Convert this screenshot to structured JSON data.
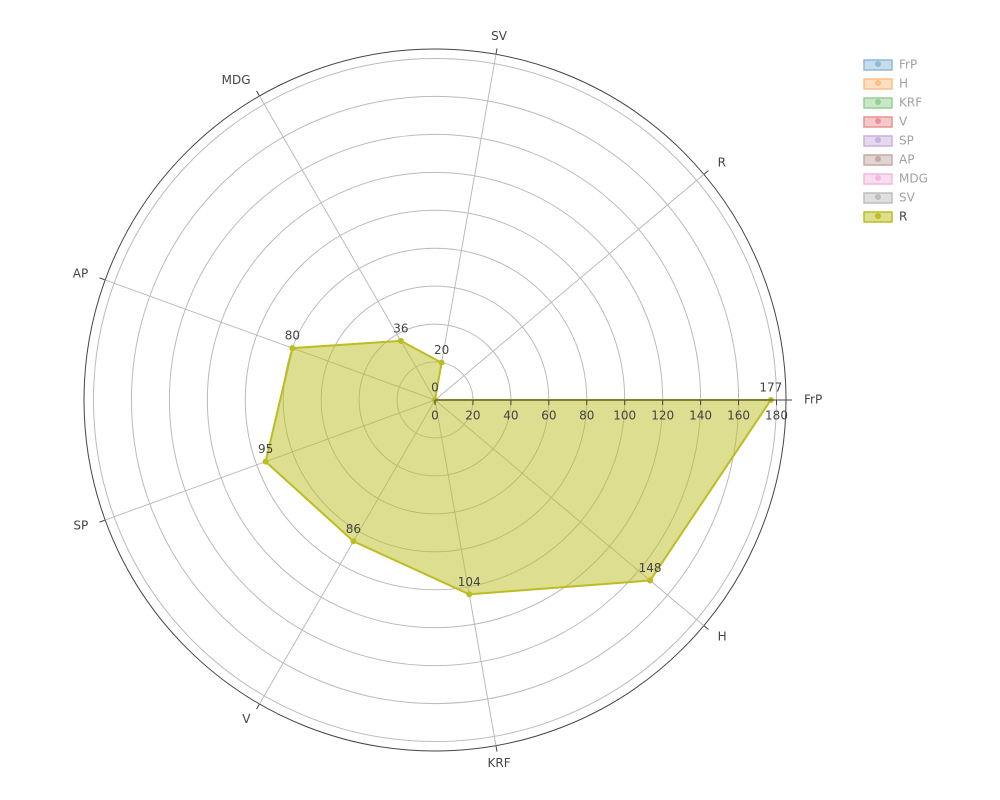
{
  "chart_data": {
    "type": "radar",
    "categories": [
      "FrP",
      "H",
      "KRF",
      "V",
      "SP",
      "AP",
      "MDG",
      "SV",
      "R"
    ],
    "rlim": [
      0,
      185
    ],
    "rticks": [
      0,
      20,
      40,
      60,
      80,
      100,
      120,
      140,
      160,
      180
    ],
    "grid": true,
    "legend": "top-right",
    "series": [
      {
        "name": "FrP",
        "color": "#1f77b4",
        "visible": "legendonly"
      },
      {
        "name": "H",
        "color": "#ff7f0e",
        "visible": "legendonly"
      },
      {
        "name": "KRF",
        "color": "#2ca02c",
        "visible": "legendonly"
      },
      {
        "name": "V",
        "color": "#d62728",
        "visible": "legendonly"
      },
      {
        "name": "SP",
        "color": "#9467bd",
        "visible": "legendonly"
      },
      {
        "name": "AP",
        "color": "#8c564b",
        "visible": "legendonly"
      },
      {
        "name": "MDG",
        "color": "#e377c2",
        "visible": "legendonly"
      },
      {
        "name": "SV",
        "color": "#7f7f7f",
        "visible": "legendonly"
      },
      {
        "name": "R",
        "color": "#bcbd22",
        "visible": true,
        "values": [
          177,
          148,
          104,
          86,
          95,
          80,
          36,
          20,
          0
        ]
      }
    ]
  }
}
